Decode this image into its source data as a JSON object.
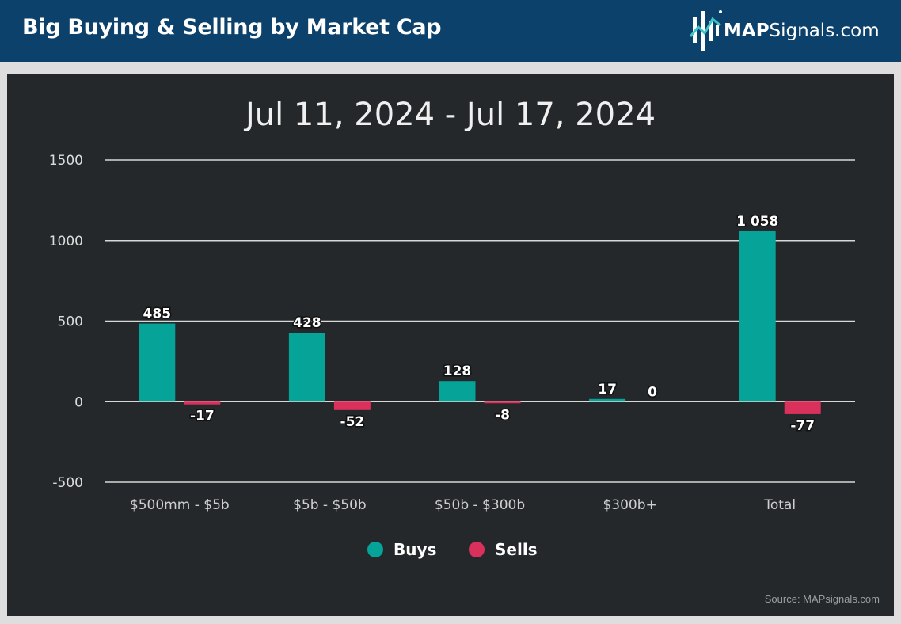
{
  "header": {
    "title": "Big Buying & Selling by Market Cap",
    "logo_bold": "MAP",
    "logo_rest": "Signals.com"
  },
  "footer": {
    "source": "Source: MAPsignals.com"
  },
  "colors": {
    "header_bg": "#0c416b",
    "panel_bg": "#25282b",
    "buys": "#05a398",
    "sells": "#d9305c",
    "gridline": "#d8d8d8",
    "text": "#e8e8e8"
  },
  "chart_data": {
    "type": "bar",
    "title": "Jul 11, 2024 - Jul 17, 2024",
    "categories": [
      "$500mm - $5b",
      "$5b - $50b",
      "$50b - $300b",
      "$300b+",
      "Total"
    ],
    "series": [
      {
        "name": "Buys",
        "values": [
          485,
          428,
          128,
          17,
          1058
        ],
        "labels": [
          "485",
          "428",
          "128",
          "17",
          "1 058"
        ],
        "color": "#05a398"
      },
      {
        "name": "Sells",
        "values": [
          -17,
          -52,
          -8,
          0,
          -77
        ],
        "labels": [
          "-17",
          "-52",
          "-8",
          "0",
          "-77"
        ],
        "color": "#d9305c"
      }
    ],
    "ylim": [
      -500,
      1500
    ],
    "yticks": [
      -500,
      0,
      500,
      1000,
      1500
    ],
    "grid": true,
    "legend_position": "bottom"
  }
}
